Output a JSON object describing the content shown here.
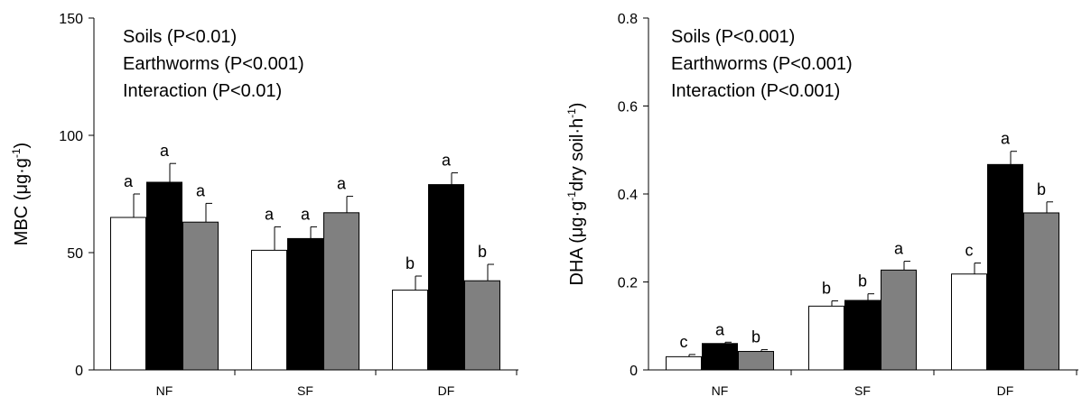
{
  "chart_data": [
    {
      "type": "bar",
      "ylabel_prefix": "MBC (μg·g",
      "ylabel_sup": "-1",
      "ylabel_suffix": ")",
      "categories": [
        "NF",
        "SF",
        "DF"
      ],
      "ylim": [
        0,
        150
      ],
      "yticks": [
        "0",
        "50",
        "100",
        "150"
      ],
      "annotations": [
        "Soils (P<0.01)",
        "Earthworms (P<0.001)",
        "Interaction (P<0.01)"
      ],
      "series": [
        {
          "color": "#ffffff",
          "values": [
            65,
            51,
            34
          ],
          "errors": [
            10,
            10,
            6
          ],
          "letters": [
            "a",
            "a",
            "b"
          ]
        },
        {
          "color": "#000000",
          "values": [
            80,
            56,
            79
          ],
          "errors": [
            8,
            5,
            5
          ],
          "letters": [
            "a",
            "a",
            "a"
          ]
        },
        {
          "color": "#808080",
          "values": [
            63,
            67,
            38
          ],
          "errors": [
            8,
            7,
            7
          ],
          "letters": [
            "a",
            "a",
            "b"
          ]
        }
      ]
    },
    {
      "type": "bar",
      "ylabel_parts": [
        "DHA (μg·g",
        "-1",
        "dry soil·h",
        "-1",
        ")"
      ],
      "categories": [
        "NF",
        "SF",
        "DF"
      ],
      "ylim": [
        0,
        0.8
      ],
      "yticks": [
        "0",
        "0.2",
        "0.4",
        "0.6",
        "0.8"
      ],
      "annotations": [
        "Soils (P<0.001)",
        "Earthworms (P<0.001)",
        "Interaction (P<0.001)"
      ],
      "series": [
        {
          "color": "#ffffff",
          "values": [
            0.03,
            0.145,
            0.218
          ],
          "errors": [
            0.005,
            0.012,
            0.025
          ],
          "letters": [
            "c",
            "b",
            "c"
          ]
        },
        {
          "color": "#000000",
          "values": [
            0.06,
            0.158,
            0.467
          ],
          "errors": [
            0.003,
            0.015,
            0.03
          ],
          "letters": [
            "a",
            "b",
            "a"
          ]
        },
        {
          "color": "#808080",
          "values": [
            0.042,
            0.227,
            0.357
          ],
          "errors": [
            0.004,
            0.02,
            0.025
          ],
          "letters": [
            "b",
            "a",
            "b"
          ]
        }
      ]
    }
  ]
}
